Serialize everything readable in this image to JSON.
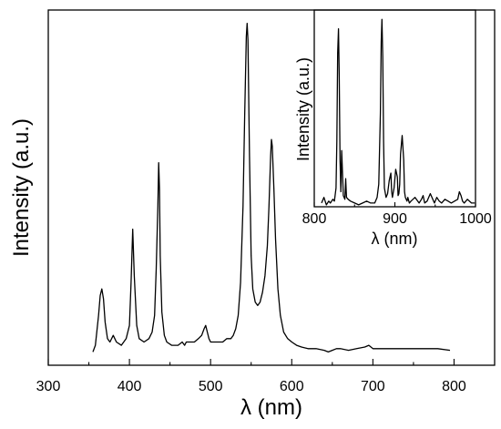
{
  "chart_data": [
    {
      "type": "line",
      "xlabel": "λ (nm)",
      "ylabel": "Intensity (a.u.)",
      "xlim": [
        300,
        850
      ],
      "ylim": [
        -0.03,
        1.04
      ],
      "xticks": [
        300,
        400,
        500,
        600,
        700,
        800
      ],
      "yticks_shown": false,
      "grid": false,
      "series": [
        {
          "x": [
            355,
            358,
            362,
            364,
            366,
            368,
            370,
            373,
            376,
            380,
            384,
            390,
            396,
            400,
            402,
            404,
            406,
            409,
            412,
            418,
            424,
            428,
            431,
            433,
            435,
            436,
            437,
            438,
            440,
            443,
            446,
            452,
            460,
            465,
            468,
            470,
            475,
            480,
            485,
            489,
            492,
            494,
            496,
            498,
            500,
            505,
            510,
            515,
            520,
            525,
            528,
            531,
            534,
            537,
            540,
            542,
            544,
            545,
            546,
            548,
            550,
            552,
            555,
            558,
            561,
            564,
            567,
            570,
            572,
            574,
            575,
            576,
            578,
            580,
            583,
            586,
            590,
            595,
            600,
            606,
            612,
            620,
            630,
            640,
            645,
            650,
            655,
            660,
            670,
            680,
            690,
            695,
            700,
            710,
            720,
            740,
            760,
            780,
            795
          ],
          "y": [
            0.01,
            0.03,
            0.12,
            0.18,
            0.2,
            0.17,
            0.1,
            0.05,
            0.04,
            0.06,
            0.04,
            0.03,
            0.05,
            0.09,
            0.22,
            0.38,
            0.24,
            0.09,
            0.05,
            0.04,
            0.05,
            0.07,
            0.12,
            0.26,
            0.45,
            0.58,
            0.5,
            0.3,
            0.13,
            0.06,
            0.04,
            0.03,
            0.03,
            0.04,
            0.03,
            0.04,
            0.04,
            0.04,
            0.05,
            0.06,
            0.08,
            0.09,
            0.07,
            0.05,
            0.04,
            0.04,
            0.04,
            0.04,
            0.05,
            0.05,
            0.06,
            0.08,
            0.12,
            0.22,
            0.45,
            0.72,
            0.96,
            1.0,
            0.95,
            0.6,
            0.3,
            0.2,
            0.16,
            0.15,
            0.16,
            0.19,
            0.24,
            0.33,
            0.45,
            0.6,
            0.65,
            0.63,
            0.5,
            0.35,
            0.2,
            0.12,
            0.07,
            0.05,
            0.04,
            0.03,
            0.025,
            0.02,
            0.02,
            0.015,
            0.01,
            0.015,
            0.02,
            0.02,
            0.015,
            0.02,
            0.025,
            0.03,
            0.02,
            0.02,
            0.02,
            0.02,
            0.02,
            0.02,
            0.015
          ]
        }
      ]
    },
    {
      "type": "line",
      "xlabel": "λ (nm)",
      "ylabel": "Intensity (a.u.)",
      "xlim": [
        800,
        1000
      ],
      "ylim": [
        0,
        1.05
      ],
      "xticks": [
        800,
        900,
        1000
      ],
      "yticks_shown": false,
      "grid": false,
      "series": [
        {
          "x": [
            809,
            812,
            815,
            818,
            820,
            823,
            825,
            827,
            828,
            829,
            830,
            831,
            832,
            833,
            834,
            835,
            836,
            838,
            839,
            840,
            842,
            845,
            850,
            855,
            860,
            865,
            870,
            875,
            878,
            880,
            882,
            883,
            884,
            885,
            886,
            887,
            889,
            891,
            893,
            895,
            896,
            897,
            899,
            901,
            903,
            904,
            905,
            906,
            907,
            909,
            911,
            912,
            913,
            914,
            915,
            916,
            918,
            920,
            925,
            930,
            933,
            935,
            937,
            940,
            944,
            947,
            949,
            952,
            955,
            958,
            962,
            966,
            970,
            974,
            978,
            980,
            982,
            984,
            986,
            990,
            995,
            999
          ],
          "y": [
            0.02,
            0.05,
            0.01,
            0.03,
            0.02,
            0.04,
            0.03,
            0.1,
            0.35,
            0.82,
            0.95,
            0.7,
            0.25,
            0.08,
            0.3,
            0.18,
            0.06,
            0.04,
            0.15,
            0.05,
            0.04,
            0.03,
            0.02,
            0.01,
            0.02,
            0.03,
            0.02,
            0.02,
            0.05,
            0.12,
            0.5,
            0.88,
            1.0,
            0.8,
            0.35,
            0.1,
            0.05,
            0.07,
            0.14,
            0.18,
            0.08,
            0.05,
            0.1,
            0.2,
            0.16,
            0.06,
            0.07,
            0.12,
            0.28,
            0.38,
            0.25,
            0.08,
            0.05,
            0.04,
            0.03,
            0.05,
            0.02,
            0.03,
            0.05,
            0.02,
            0.04,
            0.06,
            0.02,
            0.03,
            0.07,
            0.04,
            0.02,
            0.05,
            0.03,
            0.02,
            0.04,
            0.03,
            0.02,
            0.03,
            0.04,
            0.08,
            0.06,
            0.03,
            0.02,
            0.04,
            0.02,
            0.02
          ]
        }
      ]
    }
  ]
}
